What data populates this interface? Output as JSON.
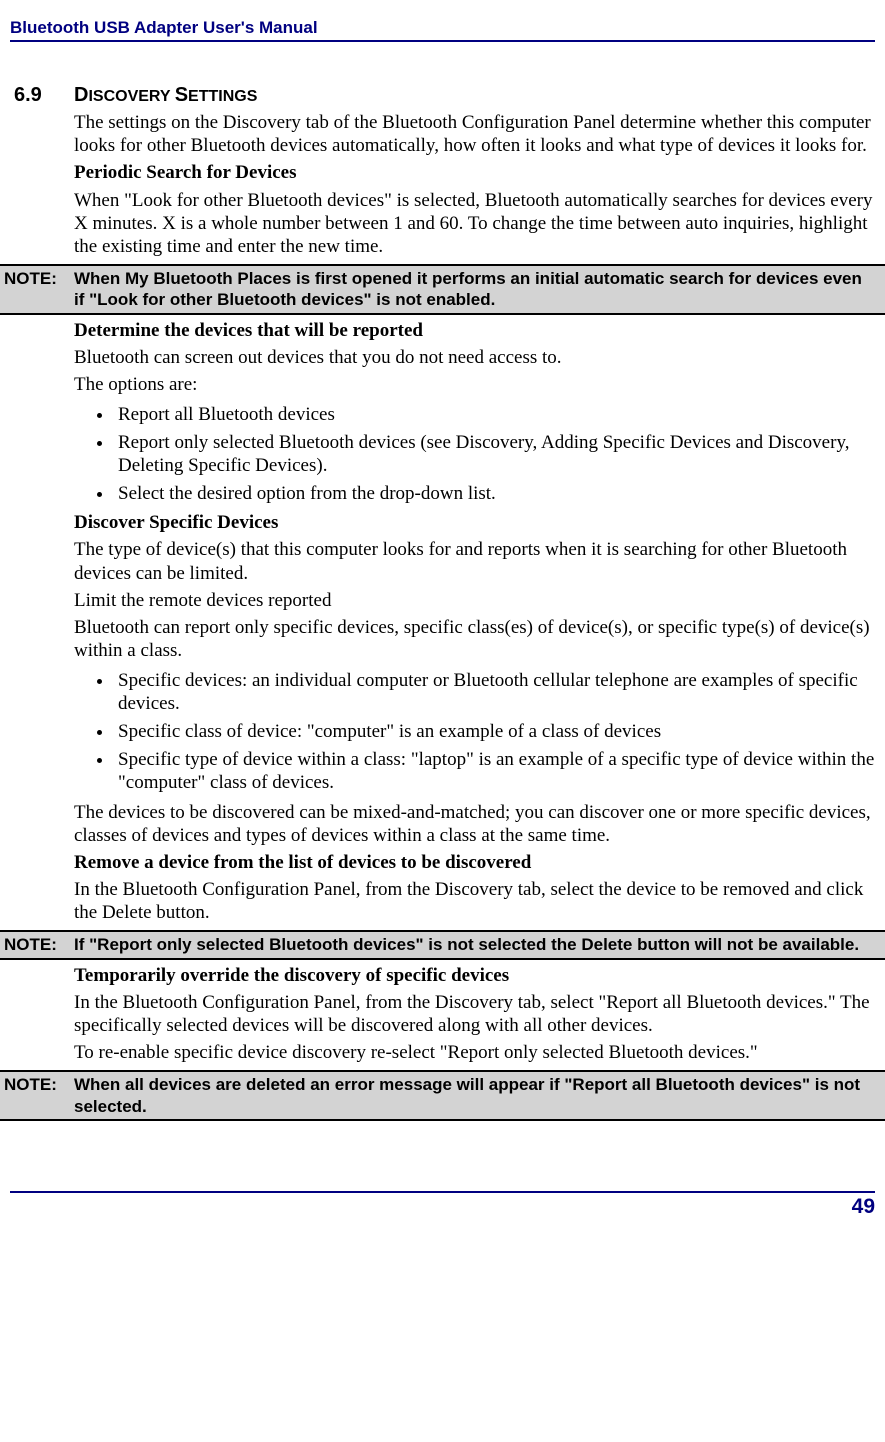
{
  "header": {
    "title": "Bluetooth USB Adapter User's Manual"
  },
  "section": {
    "number": "6.9",
    "title_prefix": "D",
    "title_rest": "ISCOVERY ",
    "title_prefix2": "S",
    "title_rest2": "ETTINGS"
  },
  "body": {
    "p1": "The settings on the Discovery tab of the Bluetooth Configuration Panel determine whether this computer looks for other Bluetooth devices automatically, how often it looks and what type of devices it looks for.",
    "h1": "Periodic Search for Devices",
    "p2": "When \"Look for other Bluetooth devices\" is selected, Bluetooth automatically searches for devices every X minutes. X is a whole number between 1 and 60. To change the time between auto inquiries, highlight the existing time and enter the new time.",
    "note1_label": "NOTE:",
    "note1": "When My Bluetooth Places is first opened it performs an initial automatic search for devices even if \"Look for other Bluetooth devices\" is not enabled.",
    "h2": "Determine the devices that will be reported",
    "p3": "Bluetooth can screen out devices that you do not need access to.",
    "p4": "The options are:",
    "list1": [
      "Report all Bluetooth devices",
      "Report only selected Bluetooth devices (see Discovery, Adding Specific Devices and Discovery, Deleting Specific Devices).",
      "Select the desired option from the drop-down list."
    ],
    "h3": "Discover Specific Devices",
    "p5": "The type of device(s) that this computer looks for and reports when it is searching for other Bluetooth devices can be limited.",
    "p6": "Limit the remote devices reported",
    "p7": "Bluetooth can report only specific devices, specific class(es) of device(s), or specific type(s) of device(s) within a class.",
    "list2": [
      "Specific devices: an individual computer or Bluetooth cellular telephone are examples of specific devices.",
      "Specific class of device: \"computer\" is an example of a class of devices",
      "Specific type of device within a class: \"laptop\" is an example of a specific type of device within the \"computer\" class of devices."
    ],
    "p8": "The devices to be discovered can be mixed-and-matched; you can discover one or more specific devices, classes of devices and types of devices within a class at the same time.",
    "h4": "Remove a device from the list of devices to be discovered",
    "p9": "In the Bluetooth Configuration Panel, from the Discovery tab, select the device to be removed and click the Delete button.",
    "note2_label": "NOTE:",
    "note2": "If \"Report only selected Bluetooth devices\" is not selected the Delete button will not be available.",
    "h5": "Temporarily override the discovery of specific devices",
    "p10": "In the Bluetooth Configuration Panel, from the Discovery tab, select \"Report all Bluetooth devices.\" The specifically selected devices will be discovered along with all other devices.",
    "p11": "To re-enable specific device discovery re-select \"Report only selected Bluetooth devices.\"",
    "note3_label": "NOTE:",
    "note3": "When all devices are deleted an error message will appear if \"Report all Bluetooth devices\" is not selected."
  },
  "footer": {
    "page": "49"
  }
}
